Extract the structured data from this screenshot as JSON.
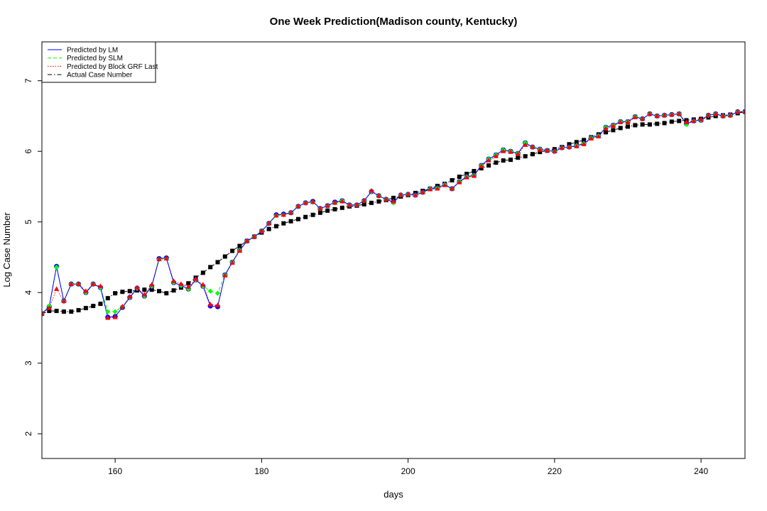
{
  "chart_data": {
    "type": "line",
    "title": "One Week Prediction(Madison county, Kentucky)",
    "xlabel": "days",
    "ylabel": "Log Case Number",
    "xlim": [
      150,
      246
    ],
    "ylim": [
      1.65,
      7.55
    ],
    "xticks": [
      160,
      180,
      200,
      220,
      240
    ],
    "yticks": [
      2,
      3,
      4,
      5,
      6,
      7
    ],
    "grid": false,
    "legend_position": "top-left",
    "legend": [
      {
        "label": "Predicted by LM",
        "color": "#0000ff",
        "line": "solid"
      },
      {
        "label": "Predicted by SLM",
        "color": "#00ff00",
        "line": "dashed"
      },
      {
        "label": "Predicted by Block GRF Last",
        "color": "#ff0000",
        "line": "dotted"
      },
      {
        "label": "Actual Case Number",
        "color": "#000000",
        "line": "dashdot"
      }
    ],
    "x": [
      150,
      151,
      152,
      153,
      154,
      155,
      156,
      157,
      158,
      159,
      160,
      161,
      162,
      163,
      164,
      165,
      166,
      167,
      168,
      169,
      170,
      171,
      172,
      173,
      174,
      175,
      176,
      177,
      178,
      179,
      180,
      181,
      182,
      183,
      184,
      185,
      186,
      187,
      188,
      189,
      190,
      191,
      192,
      193,
      194,
      195,
      196,
      197,
      198,
      199,
      200,
      201,
      202,
      203,
      204,
      205,
      206,
      207,
      208,
      209,
      210,
      211,
      212,
      213,
      214,
      215,
      216,
      217,
      218,
      219,
      220,
      221,
      222,
      223,
      224,
      225,
      226,
      227,
      228,
      229,
      230,
      231,
      232,
      233,
      234,
      235,
      236,
      237,
      238,
      239,
      240,
      241,
      242,
      243,
      244,
      245,
      246
    ],
    "series": [
      {
        "name": "Predicted by LM",
        "color": "#0000ff",
        "marker": "circle",
        "values": [
          3.7,
          3.8,
          4.37,
          3.88,
          4.12,
          4.12,
          4.0,
          4.12,
          4.07,
          3.65,
          3.66,
          3.79,
          3.93,
          4.06,
          3.95,
          4.09,
          4.48,
          4.49,
          4.14,
          4.1,
          4.05,
          4.18,
          4.09,
          3.81,
          3.8,
          4.25,
          4.43,
          4.6,
          4.73,
          4.79,
          4.87,
          4.98,
          5.1,
          5.11,
          5.13,
          5.22,
          5.27,
          5.29,
          5.19,
          5.23,
          5.28,
          5.3,
          5.24,
          5.24,
          5.3,
          5.43,
          5.37,
          5.32,
          5.28,
          5.38,
          5.39,
          5.38,
          5.42,
          5.47,
          5.48,
          5.53,
          5.47,
          5.57,
          5.64,
          5.66,
          5.8,
          5.89,
          5.95,
          6.02,
          6.0,
          5.97,
          6.12,
          6.06,
          6.03,
          6.01,
          6.0,
          6.05,
          6.06,
          6.08,
          6.11,
          6.19,
          6.22,
          6.34,
          6.37,
          6.42,
          6.42,
          6.49,
          6.46,
          6.53,
          6.5,
          6.51,
          6.52,
          6.53,
          6.39,
          6.43,
          6.44,
          6.51,
          6.53,
          6.5,
          6.51,
          6.56,
          6.56
        ]
      },
      {
        "name": "Predicted by SLM",
        "color": "#00ff00",
        "marker": "diamond",
        "values": [
          3.7,
          3.81,
          4.36,
          3.88,
          4.12,
          4.12,
          4.0,
          4.12,
          4.07,
          3.73,
          3.73,
          3.8,
          3.93,
          4.06,
          3.95,
          4.09,
          4.47,
          4.48,
          4.14,
          4.1,
          4.05,
          4.18,
          4.09,
          4.02,
          3.99,
          4.25,
          4.43,
          4.6,
          4.73,
          4.79,
          4.87,
          4.98,
          5.09,
          5.1,
          5.13,
          5.22,
          5.27,
          5.28,
          5.19,
          5.23,
          5.27,
          5.3,
          5.24,
          5.24,
          5.3,
          5.43,
          5.37,
          5.32,
          5.27,
          5.38,
          5.39,
          5.38,
          5.42,
          5.47,
          5.48,
          5.53,
          5.47,
          5.57,
          5.64,
          5.66,
          5.8,
          5.89,
          5.95,
          6.02,
          6.0,
          5.97,
          6.12,
          6.06,
          6.03,
          6.01,
          6.0,
          6.05,
          6.06,
          6.08,
          6.11,
          6.19,
          6.22,
          6.34,
          6.37,
          6.42,
          6.42,
          6.49,
          6.46,
          6.53,
          6.5,
          6.51,
          6.52,
          6.53,
          6.38,
          6.43,
          6.44,
          6.51,
          6.53,
          6.5,
          6.51,
          6.56,
          6.56
        ]
      },
      {
        "name": "Predicted by Block GRF Last",
        "color": "#ff0000",
        "marker": "triangle",
        "values": [
          3.7,
          3.78,
          4.05,
          3.88,
          4.12,
          4.12,
          4.02,
          4.12,
          4.09,
          3.64,
          3.65,
          3.8,
          3.94,
          4.07,
          3.97,
          4.11,
          4.47,
          4.48,
          4.16,
          4.12,
          4.08,
          4.19,
          4.11,
          3.83,
          3.82,
          4.24,
          4.42,
          4.59,
          4.73,
          4.79,
          4.87,
          4.98,
          5.09,
          5.1,
          5.13,
          5.22,
          5.27,
          5.28,
          5.19,
          5.23,
          5.27,
          5.29,
          5.24,
          5.24,
          5.3,
          5.44,
          5.37,
          5.32,
          5.29,
          5.38,
          5.39,
          5.38,
          5.42,
          5.46,
          5.47,
          5.52,
          5.47,
          5.56,
          5.63,
          5.65,
          5.79,
          5.87,
          5.93,
          6.0,
          5.99,
          5.96,
          6.09,
          6.06,
          6.02,
          6.01,
          6.0,
          6.05,
          6.06,
          6.07,
          6.1,
          6.18,
          6.21,
          6.32,
          6.36,
          6.41,
          6.41,
          6.48,
          6.46,
          6.53,
          6.5,
          6.51,
          6.52,
          6.53,
          6.41,
          6.43,
          6.45,
          6.51,
          6.53,
          6.5,
          6.51,
          6.56,
          6.56
        ]
      },
      {
        "name": "Actual Case Number",
        "color": "#000000",
        "marker": "square",
        "values": [
          3.7,
          3.74,
          3.74,
          3.73,
          3.73,
          3.75,
          3.78,
          3.81,
          3.84,
          3.92,
          3.99,
          4.01,
          4.02,
          4.03,
          4.04,
          4.04,
          4.02,
          3.99,
          4.03,
          4.07,
          4.13,
          4.21,
          4.28,
          4.36,
          4.43,
          4.51,
          4.59,
          4.66,
          4.73,
          4.79,
          4.85,
          4.9,
          4.94,
          4.98,
          5.01,
          5.04,
          5.07,
          5.1,
          5.13,
          5.16,
          5.18,
          5.2,
          5.22,
          5.23,
          5.25,
          5.27,
          5.29,
          5.31,
          5.34,
          5.36,
          5.38,
          5.41,
          5.44,
          5.47,
          5.51,
          5.54,
          5.59,
          5.64,
          5.68,
          5.72,
          5.76,
          5.8,
          5.84,
          5.87,
          5.88,
          5.91,
          5.93,
          5.96,
          5.99,
          6.01,
          6.03,
          6.06,
          6.1,
          6.13,
          6.16,
          6.2,
          6.24,
          6.27,
          6.3,
          6.33,
          6.35,
          6.37,
          6.38,
          6.38,
          6.39,
          6.4,
          6.42,
          6.43,
          6.44,
          6.45,
          6.46,
          6.48,
          6.5,
          6.51,
          6.52,
          6.54,
          6.56
        ]
      }
    ]
  }
}
